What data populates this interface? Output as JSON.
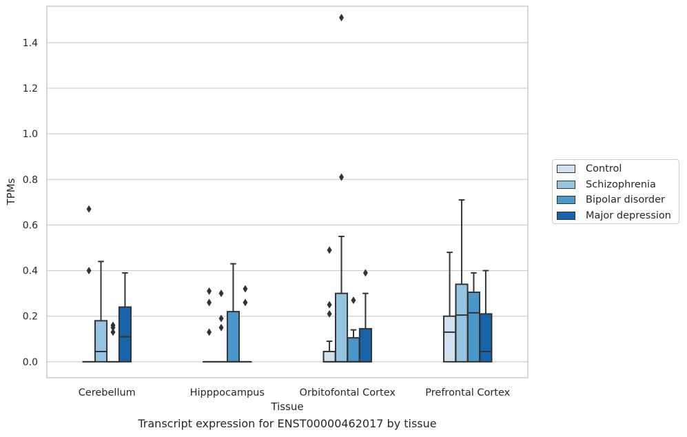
{
  "chart_data": {
    "type": "box",
    "title": "",
    "caption": "Transcript expression for ENST00000462017 by tissue",
    "xlabel": "Tissue",
    "ylabel": "TPMs",
    "ylim": [
      -0.07,
      1.56
    ],
    "yticks": [
      0.0,
      0.2,
      0.4,
      0.6,
      0.8,
      1.0,
      1.2,
      1.4
    ],
    "ytick_labels": [
      "0.0",
      "0.2",
      "0.4",
      "0.6",
      "0.8",
      "1.0",
      "1.2",
      "1.4"
    ],
    "grid": "horizontal",
    "legend_placement": "right",
    "categories": [
      "Cerebellum",
      "Hipppocampus",
      "Orbitofontal Cortex",
      "Prefrontal Cortex"
    ],
    "series": [
      {
        "name": "Control",
        "color": "#d0e1f2",
        "boxes": [
          {
            "q1": 0,
            "median": 0,
            "q3": 0,
            "whisker_low": 0,
            "whisker_high": 0,
            "outliers": [
              0.4,
              0.67
            ]
          },
          {
            "q1": 0,
            "median": 0,
            "q3": 0,
            "whisker_low": 0,
            "whisker_high": 0,
            "outliers": [
              0.13,
              0.26,
              0.31
            ]
          },
          {
            "q1": 0,
            "median": 0,
            "q3": 0.045,
            "whisker_low": 0,
            "whisker_high": 0.09,
            "outliers": [
              0.21,
              0.25,
              0.49
            ]
          },
          {
            "q1": 0,
            "median": 0.13,
            "q3": 0.2,
            "whisker_low": 0,
            "whisker_high": 0.48,
            "outliers": []
          }
        ]
      },
      {
        "name": "Schizophrenia",
        "color": "#94c4df",
        "boxes": [
          {
            "q1": 0,
            "median": 0.045,
            "q3": 0.18,
            "whisker_low": 0,
            "whisker_high": 0.44,
            "outliers": []
          },
          {
            "q1": 0,
            "median": 0,
            "q3": 0,
            "whisker_low": 0,
            "whisker_high": 0,
            "outliers": [
              0.15,
              0.19,
              0.3
            ]
          },
          {
            "q1": 0,
            "median": 0,
            "q3": 0.3,
            "whisker_low": 0,
            "whisker_high": 0.55,
            "outliers": [
              0.81,
              1.51
            ]
          },
          {
            "q1": 0,
            "median": 0.205,
            "q3": 0.34,
            "whisker_low": 0,
            "whisker_high": 0.71,
            "outliers": []
          }
        ]
      },
      {
        "name": "Bipolar disorder",
        "color": "#4a98c9",
        "boxes": [
          {
            "q1": 0,
            "median": 0,
            "q3": 0,
            "whisker_low": 0,
            "whisker_high": 0,
            "outliers": [
              0.13,
              0.15,
              0.16
            ]
          },
          {
            "q1": 0,
            "median": 0,
            "q3": 0.22,
            "whisker_low": 0,
            "whisker_high": 0.43,
            "outliers": []
          },
          {
            "q1": 0,
            "median": 0,
            "q3": 0.105,
            "whisker_low": 0,
            "whisker_high": 0.14,
            "outliers": [
              0.27
            ]
          },
          {
            "q1": 0,
            "median": 0.215,
            "q3": 0.305,
            "whisker_low": 0,
            "whisker_high": 0.39,
            "outliers": []
          }
        ]
      },
      {
        "name": "Major depression",
        "color": "#1764ab",
        "boxes": [
          {
            "q1": 0,
            "median": 0.11,
            "q3": 0.24,
            "whisker_low": 0,
            "whisker_high": 0.39,
            "outliers": []
          },
          {
            "q1": 0,
            "median": 0,
            "q3": 0,
            "whisker_low": 0,
            "whisker_high": 0,
            "outliers": [
              0.26,
              0.32
            ]
          },
          {
            "q1": 0,
            "median": 0,
            "q3": 0.145,
            "whisker_low": 0,
            "whisker_high": 0.3,
            "outliers": [
              0.39
            ]
          },
          {
            "q1": 0,
            "median": 0.045,
            "q3": 0.21,
            "whisker_low": 0,
            "whisker_high": 0.4,
            "outliers": []
          }
        ]
      }
    ]
  }
}
